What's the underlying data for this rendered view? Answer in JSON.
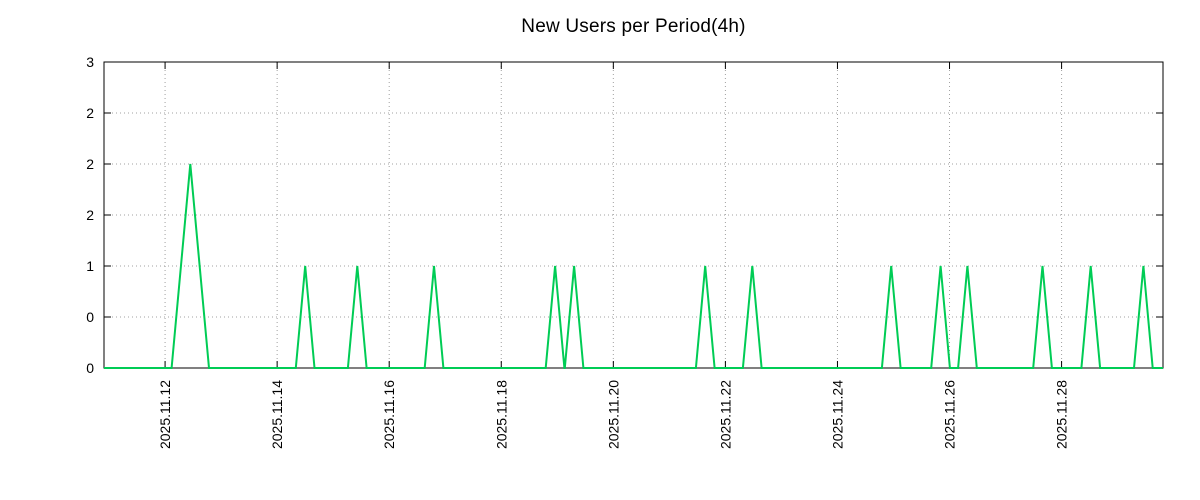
{
  "page": {
    "background": "#ffffff"
  },
  "chart_data": {
    "type": "line",
    "title": "New Users per Period(4h)",
    "period_hours": 4,
    "line_color": "#00cc55",
    "grid_color": "#a0a0a0",
    "axis_color": "#000000",
    "text_color": "#000000",
    "legend": "none",
    "grid": "dotted",
    "x_axis": {
      "domain_days": [
        0,
        18.9
      ],
      "ticks": [
        {
          "day": 1.09,
          "label": "2025.11.12"
        },
        {
          "day": 3.09,
          "label": "2025.11.14"
        },
        {
          "day": 5.09,
          "label": "2025.11.16"
        },
        {
          "day": 7.09,
          "label": "2025.11.18"
        },
        {
          "day": 9.09,
          "label": "2025.11.20"
        },
        {
          "day": 11.09,
          "label": "2025.11.22"
        },
        {
          "day": 13.09,
          "label": "2025.11.24"
        },
        {
          "day": 15.09,
          "label": "2025.11.26"
        },
        {
          "day": 17.09,
          "label": "2025.11.28"
        }
      ]
    },
    "y_axis": {
      "domain": [
        0,
        3
      ],
      "ticks": [
        {
          "value": 0,
          "label": "0"
        },
        {
          "value": 0.5,
          "label": "0"
        },
        {
          "value": 1,
          "label": "1"
        },
        {
          "value": 1.5,
          "label": "2"
        },
        {
          "value": 2,
          "label": "2"
        },
        {
          "value": 2.5,
          "label": "2"
        },
        {
          "value": 3,
          "label": "3"
        }
      ]
    },
    "baseline": 0,
    "bin_days": 0.1667,
    "spikes": [
      {
        "day": 1.54,
        "value": 2,
        "approx_time": "2025-11-12 11:00"
      },
      {
        "day": 3.59,
        "value": 1,
        "approx_time": "2025-11-14 12:00"
      },
      {
        "day": 4.52,
        "value": 1,
        "approx_time": "2025-11-15 10:00"
      },
      {
        "day": 5.89,
        "value": 1,
        "approx_time": "2025-11-16 19:00"
      },
      {
        "day": 8.05,
        "value": 1,
        "approx_time": "2025-11-18 23:00"
      },
      {
        "day": 8.39,
        "value": 1,
        "approx_time": "2025-11-19 07:00"
      },
      {
        "day": 10.73,
        "value": 1,
        "approx_time": "2025-11-21 15:00"
      },
      {
        "day": 11.57,
        "value": 1,
        "approx_time": "2025-11-22 11:00"
      },
      {
        "day": 14.05,
        "value": 1,
        "approx_time": "2025-11-24 23:00"
      },
      {
        "day": 14.93,
        "value": 1,
        "approx_time": "2025-11-25 20:00"
      },
      {
        "day": 15.41,
        "value": 1,
        "approx_time": "2025-11-26 08:00"
      },
      {
        "day": 16.75,
        "value": 1,
        "approx_time": "2025-11-27 16:00"
      },
      {
        "day": 17.61,
        "value": 1,
        "approx_time": "2025-11-28 12:00"
      },
      {
        "day": 18.55,
        "value": 1,
        "approx_time": "2025-11-29 11:00"
      }
    ]
  }
}
